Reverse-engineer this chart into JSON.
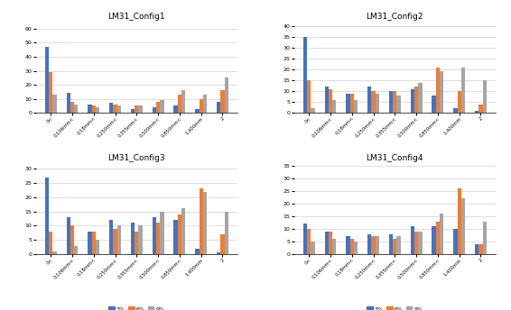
{
  "configs": [
    "LM31_Config1",
    "LM31_Config2",
    "LM31_Config3",
    "LM31_Config4"
  ],
  "categories": [
    "0<",
    "0.106mm<",
    "0.18mm<",
    "0.250mm<",
    "0.355mm<",
    "0.500mm<",
    "0.850mm<",
    "1.400mm",
    "2"
  ],
  "series_labels": [
    "3%",
    "6%",
    "9%"
  ],
  "series_colors": [
    "#4472C4",
    "#ED7D31",
    "#A5A5A5"
  ],
  "data": {
    "LM31_Config1": {
      "3%": [
        47,
        14,
        6,
        7,
        3,
        4,
        5,
        3,
        8
      ],
      "6%": [
        29,
        8,
        5,
        6,
        5,
        8,
        13,
        10,
        16
      ],
      "9%": [
        13,
        6,
        4,
        5,
        5,
        9,
        16,
        13,
        25
      ]
    },
    "LM31_Config2": {
      "3%": [
        35,
        12,
        9,
        12,
        10,
        11,
        8,
        2,
        1
      ],
      "6%": [
        15,
        11,
        9,
        10,
        10,
        12,
        21,
        10,
        4
      ],
      "9%": [
        2,
        6,
        6,
        9,
        8,
        14,
        19,
        21,
        15
      ]
    },
    "LM31_Config3": {
      "3%": [
        27,
        13,
        8,
        12,
        11,
        13,
        12,
        2,
        0.5
      ],
      "6%": [
        8,
        10,
        8,
        9,
        8,
        11,
        14,
        23,
        7
      ],
      "9%": [
        1,
        3,
        5,
        10,
        10,
        15,
        16,
        22,
        15
      ]
    },
    "LM31_Config4": {
      "3%": [
        12,
        9,
        7,
        8,
        8,
        11,
        11,
        10,
        4
      ],
      "6%": [
        10,
        9,
        6,
        7,
        6,
        9,
        13,
        26,
        4
      ],
      "9%": [
        5,
        6,
        5,
        7,
        7,
        9,
        16,
        22,
        13
      ]
    }
  },
  "ylims": {
    "LM31_Config1": [
      0,
      65
    ],
    "LM31_Config2": [
      0,
      42
    ],
    "LM31_Config3": [
      0,
      32
    ],
    "LM31_Config4": [
      0,
      36
    ]
  },
  "yticks": {
    "LM31_Config1": [
      0,
      10,
      20,
      30,
      40,
      50,
      60
    ],
    "LM31_Config2": [
      0,
      5,
      10,
      15,
      20,
      25,
      30,
      35,
      40
    ],
    "LM31_Config3": [
      0,
      5,
      10,
      15,
      20,
      25,
      30
    ],
    "LM31_Config4": [
      0,
      5,
      10,
      15,
      20,
      25,
      30,
      35
    ]
  },
  "figsize": [
    5.66,
    3.44
  ],
  "dpi": 100
}
